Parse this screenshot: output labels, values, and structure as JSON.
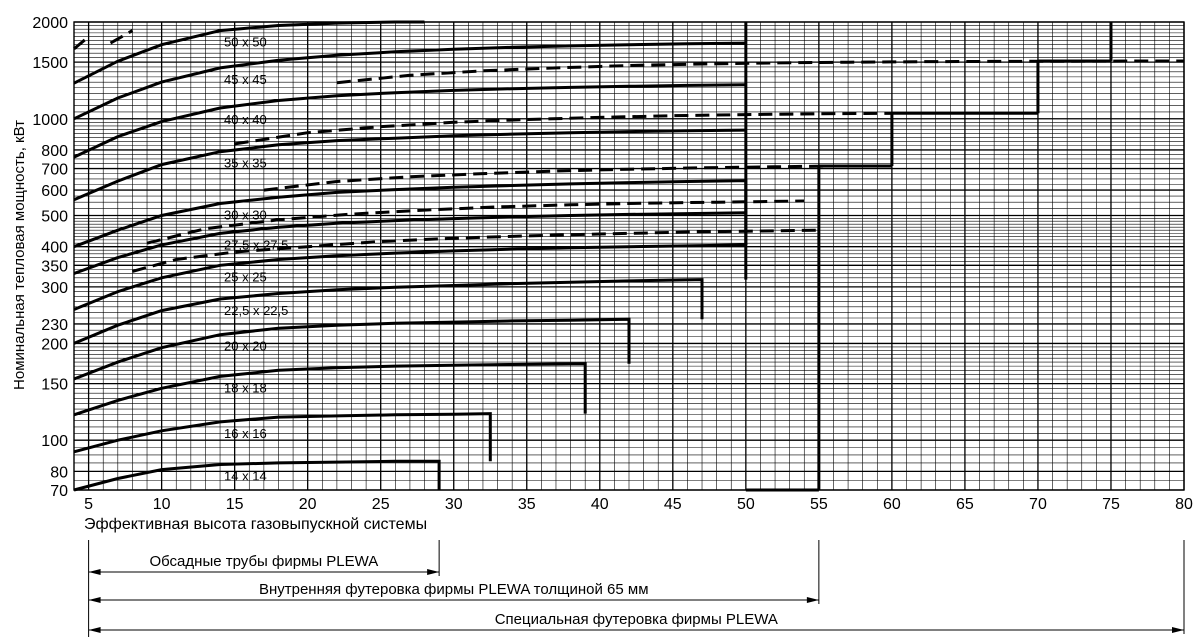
{
  "chart_data": {
    "type": "line",
    "xlabel": "Эффективная высота газовыпускной системы",
    "ylabel": "Номинальная тепловая мощность, кВт",
    "x_scale": "linear",
    "y_scale": "log",
    "xlim": [
      4,
      80
    ],
    "ylim": [
      70,
      2000
    ],
    "grid": true,
    "x_ticks": [
      5,
      10,
      15,
      20,
      25,
      30,
      35,
      40,
      45,
      50,
      55,
      60,
      65,
      70,
      75,
      80
    ],
    "y_ticks": [
      70,
      80,
      100,
      150,
      200,
      230,
      300,
      350,
      400,
      500,
      600,
      700,
      800,
      1000,
      1500,
      2000
    ],
    "series": [
      {
        "name": "14 x 14",
        "style": "solid",
        "x": [
          4,
          7,
          10,
          14,
          18,
          22,
          26,
          29
        ],
        "y": [
          70,
          76,
          81,
          84,
          85,
          85.5,
          86,
          86
        ],
        "drop_to_axis_at": 29
      },
      {
        "name": "16 x 16",
        "style": "solid",
        "x": [
          4,
          7,
          10,
          14,
          18,
          22,
          26,
          30,
          32.5
        ],
        "y": [
          92,
          100,
          107,
          114,
          118,
          119,
          120,
          120.5,
          121
        ],
        "step_down_to": 86
      },
      {
        "name": "18 x 18",
        "style": "solid",
        "x": [
          4,
          7,
          10,
          14,
          18,
          22,
          26,
          30,
          34,
          39
        ],
        "y": [
          120,
          133,
          145,
          158,
          165,
          168,
          170,
          171,
          172,
          173
        ],
        "step_down_to": 121
      },
      {
        "name": "20 x 20",
        "style": "solid",
        "x": [
          4,
          7,
          10,
          14,
          18,
          22,
          26,
          30,
          34,
          38,
          42
        ],
        "y": [
          155,
          175,
          194,
          213,
          223,
          228,
          231,
          233,
          235,
          236,
          238
        ],
        "step_down_to": 173
      },
      {
        "name": "22,5 x 22,5",
        "style": "solid",
        "x": [
          4,
          7,
          10,
          14,
          18,
          22,
          26,
          30,
          34,
          38,
          42,
          47
        ],
        "y": [
          200,
          228,
          253,
          275,
          286,
          294,
          299,
          303,
          307,
          310,
          313,
          316
        ],
        "step_down_to": 238
      },
      {
        "name": "25 x 25",
        "style": "solid",
        "x": [
          4,
          7,
          10,
          14,
          18,
          22,
          26,
          30,
          34,
          38,
          42,
          47,
          50
        ],
        "y": [
          255,
          290,
          320,
          350,
          365,
          375,
          382,
          388,
          393,
          397,
          400,
          403,
          405
        ],
        "step_down_to": 316
      },
      {
        "name": "27,5 x 27,5",
        "style": "solid",
        "x": [
          4,
          7,
          10,
          14,
          18,
          22,
          26,
          30,
          34,
          38,
          42,
          46,
          50
        ],
        "y": [
          330,
          370,
          405,
          440,
          460,
          473,
          482,
          489,
          495,
          500,
          504,
          507,
          510
        ],
        "step_down_to": 405
      },
      {
        "name": "30 x 30",
        "style": "solid",
        "x": [
          4,
          7,
          10,
          14,
          18,
          22,
          26,
          30,
          34,
          38,
          42,
          46,
          50
        ],
        "y": [
          400,
          450,
          500,
          545,
          570,
          590,
          602,
          612,
          620,
          627,
          633,
          638,
          642
        ],
        "step_down_to": 510
      },
      {
        "name": "35 x 35",
        "style": "solid",
        "x": [
          4,
          7,
          10,
          14,
          18,
          22,
          26,
          30,
          34,
          38,
          42,
          46,
          50
        ],
        "y": [
          560,
          640,
          720,
          790,
          830,
          855,
          870,
          885,
          896,
          905,
          912,
          918,
          922
        ]
      },
      {
        "name": "40 x 40",
        "style": "solid",
        "x": [
          4,
          7,
          10,
          14,
          18,
          22,
          26,
          30,
          34,
          38,
          42,
          46,
          50
        ],
        "y": [
          760,
          880,
          980,
          1080,
          1140,
          1180,
          1205,
          1225,
          1240,
          1252,
          1262,
          1270,
          1275
        ]
      },
      {
        "name": "45 x 45",
        "style": "solid",
        "x": [
          4,
          7,
          10,
          14,
          18,
          22,
          26,
          30,
          34,
          38,
          42,
          46,
          50
        ],
        "y": [
          1000,
          1160,
          1300,
          1440,
          1520,
          1575,
          1615,
          1645,
          1668,
          1685,
          1700,
          1712,
          1720
        ]
      },
      {
        "name": "50 x 50",
        "style": "solid",
        "x": [
          4,
          7,
          10,
          14,
          18,
          22,
          26,
          28
        ],
        "y": [
          1290,
          1510,
          1700,
          1880,
          1950,
          1985,
          2000,
          2000
        ]
      }
    ],
    "dashed_series": [
      {
        "x": [
          8,
          11,
          15,
          20,
          25,
          30,
          35,
          40,
          45,
          50,
          55
        ],
        "y": [
          335,
          365,
          385,
          400,
          415,
          425,
          432,
          438,
          443,
          447,
          450
        ],
        "style": "dashed"
      },
      {
        "x": [
          9,
          13,
          18,
          23,
          28,
          33,
          38,
          43,
          48,
          54
        ],
        "y": [
          410,
          455,
          485,
          505,
          520,
          532,
          540,
          546,
          550,
          555
        ],
        "style": "dashed"
      },
      {
        "x": [
          17,
          22,
          27,
          32,
          37,
          42,
          47,
          52,
          56
        ],
        "y": [
          600,
          638,
          660,
          675,
          688,
          697,
          704,
          709,
          713
        ],
        "style": "dashed"
      },
      {
        "x": [
          15,
          20,
          25,
          30,
          35,
          40,
          45,
          50,
          55,
          60
        ],
        "y": [
          835,
          905,
          945,
          975,
          995,
          1010,
          1022,
          1030,
          1036,
          1040
        ],
        "style": "dashed"
      },
      {
        "x": [
          22,
          27,
          32,
          37,
          42,
          47,
          52,
          57,
          62,
          67,
          72,
          77,
          80
        ],
        "y": [
          1295,
          1365,
          1410,
          1440,
          1465,
          1480,
          1492,
          1500,
          1505,
          1508,
          1510,
          1512,
          1513
        ],
        "style": "dashed"
      },
      {
        "x": [
          4,
          5
        ],
        "y": [
          1650,
          1800
        ],
        "style": "dashed"
      },
      {
        "x": [
          6.5,
          8
        ],
        "y": [
          1720,
          1880
        ],
        "style": "dashed"
      }
    ],
    "vertical_limits": [
      {
        "x": 50,
        "y_from": 405,
        "y_to": 2000
      },
      {
        "x": 55,
        "y_from": 70,
        "y_to": 713
      },
      {
        "x": 60,
        "y_from": 713,
        "y_to": 1040
      },
      {
        "x": 70,
        "y_from": 1040,
        "y_to": 1513
      },
      {
        "x": 75,
        "y_from": 1513,
        "y_to": 2000
      }
    ],
    "ranges": [
      {
        "label": "Обсадные трубы фирмы PLEWA",
        "from": 5,
        "to": 29
      },
      {
        "label": "Внутренняя футеровка фирмы PLEWA толщиной 65 мм",
        "from": 5,
        "to": 55
      },
      {
        "label": "Специальная футеровка фирмы PLEWA",
        "from": 5,
        "to": 80
      }
    ]
  }
}
